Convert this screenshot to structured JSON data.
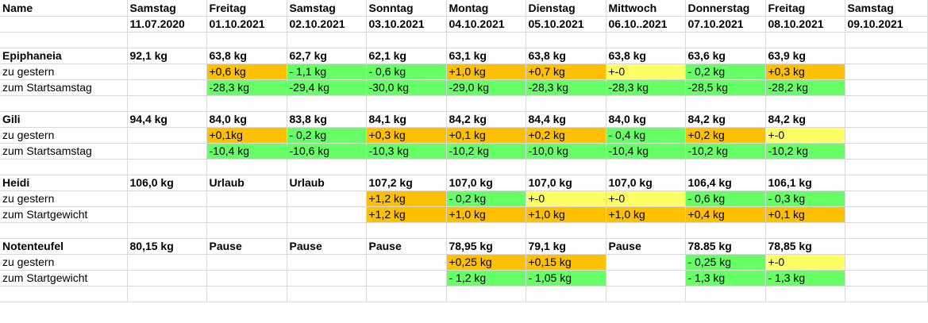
{
  "header": {
    "names": [
      "Name",
      "Samstag",
      "Freitag",
      "Samstag",
      "Sonntag",
      "Montag",
      "Dienstag",
      "Mittwoch",
      "Donnerstag",
      "Freitag",
      "Samstag"
    ],
    "dates": [
      "",
      "11.07.2020",
      "01.10.2021",
      "02.10.2021",
      "03.10.2021",
      "04.10.2021",
      "05.10.2021",
      "06.10..2021",
      "07.10.2021",
      "08.10.2021",
      "09.10.2021"
    ]
  },
  "persons": [
    {
      "name": "Epiphaneia",
      "weights": [
        "92,1 kg",
        "63,8 kg",
        "62,7 kg",
        "62,1 kg",
        "63,1 kg",
        "63,8 kg",
        "63,8 kg",
        "63,6 kg",
        "63,9 kg",
        ""
      ],
      "row2": {
        "label": "zu gestern",
        "values": [
          "",
          "+0,6 kg",
          "- 1,1 kg",
          "- 0,6 kg",
          "+1,0 kg",
          "+0,7 kg",
          "+-0",
          "- 0,2 kg",
          "+0,3 kg",
          ""
        ],
        "colors": [
          "",
          "o",
          "g",
          "g",
          "o",
          "o",
          "y",
          "g",
          "o",
          ""
        ]
      },
      "row3": {
        "label": "zum Startsamstag",
        "values": [
          "",
          "-28,3 kg",
          "-29,4 kg",
          "-30,0 kg",
          "-29,0 kg",
          "-28,3 kg",
          "-28,3 kg",
          "-28,5 kg",
          "-28,2 kg",
          ""
        ],
        "colors": [
          "",
          "g",
          "g",
          "g",
          "g",
          "g",
          "g",
          "g",
          "g",
          ""
        ]
      }
    },
    {
      "name": "Gili",
      "weights": [
        "94,4 kg",
        "84,0 kg",
        "83,8 kg",
        "84,1 kg",
        "84,2 kg",
        "84,4 kg",
        "84,0 kg",
        "84,2 kg",
        "84,2 kg",
        ""
      ],
      "row2": {
        "label": "zu gestern",
        "values": [
          "",
          "+0,1kg",
          "- 0,2 kg",
          "+0,3 kg",
          "+0,1 kg",
          "+0,2 kg",
          "- 0,4 kg",
          "+0,2 kg",
          "+-0",
          ""
        ],
        "colors": [
          "",
          "o",
          "g",
          "o",
          "o",
          "o",
          "g",
          "o",
          "y",
          ""
        ]
      },
      "row3": {
        "label": "zum Startsamstag",
        "values": [
          "",
          "-10,4 kg",
          "-10,6 kg",
          "-10,3 kg",
          "-10,2 kg",
          "-10,0 kg",
          "-10,4 kg",
          "-10,2 kg",
          "-10,2 kg",
          ""
        ],
        "colors": [
          "",
          "g",
          "g",
          "g",
          "g",
          "g",
          "g",
          "g",
          "g",
          ""
        ]
      }
    },
    {
      "name": "Heidi",
      "weights": [
        "106,0 kg",
        "Urlaub",
        "Urlaub",
        "107,2 kg",
        "107,0 kg",
        "107,0 kg",
        "107,0 kg",
        "106,4 kg",
        "106,1 kg",
        ""
      ],
      "row2": {
        "label": "zu gestern",
        "values": [
          "",
          "",
          "",
          "+1,2 kg",
          "- 0,2 kg",
          "+-0",
          "+-0",
          "- 0,6 kg",
          "- 0,3 kg",
          ""
        ],
        "colors": [
          "",
          "",
          "",
          "o",
          "g",
          "y",
          "y",
          "g",
          "g",
          ""
        ]
      },
      "row3": {
        "label": "zum Startgewicht",
        "values": [
          "",
          "",
          "",
          "+1,2 kg",
          "+1,0 kg",
          "+1,0 kg",
          "+1,0 kg",
          "+0,4 kg",
          "+0,1 kg",
          ""
        ],
        "colors": [
          "",
          "",
          "",
          "o",
          "o",
          "o",
          "o",
          "o",
          "o",
          ""
        ]
      }
    },
    {
      "name": "Notenteufel",
      "weights": [
        "80,15 kg",
        "Pause",
        "Pause",
        "Pause",
        "78,95 kg",
        "79,1 kg",
        "Pause",
        "78.85 kg",
        "78,85 kg",
        ""
      ],
      "row2": {
        "label": "zu gestern",
        "values": [
          "",
          "",
          "",
          "",
          "+0,25 kg",
          "+0,15 kg",
          "",
          "- 0,25 kg",
          "+-0",
          ""
        ],
        "colors": [
          "",
          "",
          "",
          "",
          "o",
          "o",
          "",
          "g",
          "y",
          ""
        ]
      },
      "row3": {
        "label": "zum Startgewicht",
        "values": [
          "",
          "",
          "",
          "",
          "- 1,2 kg",
          "- 1,05 kg",
          "",
          "- 1,3 kg",
          "- 1,3 kg",
          ""
        ],
        "colors": [
          "",
          "",
          "",
          "",
          "g",
          "g",
          "",
          "g",
          "g",
          ""
        ]
      }
    }
  ],
  "colors": {
    "orange": "#ffc000",
    "green": "#66ff66",
    "yellow": "#ffff66",
    "grid": "#d9d9d9"
  }
}
